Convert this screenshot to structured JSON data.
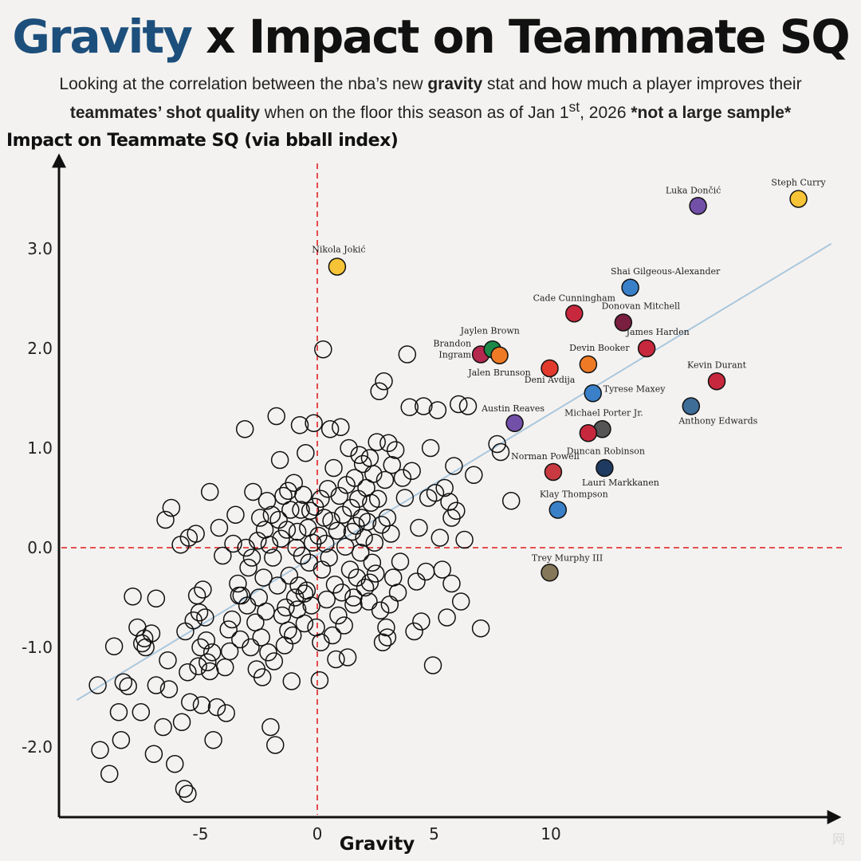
{
  "title": {
    "accent": "Gravity",
    "rest": "x Impact on Teammate SQ"
  },
  "subtitle": {
    "p1": "Looking at the correlation between the nba’s new ",
    "b1": "gravity",
    "p2": " stat and how much a player improves their ",
    "b2": "teammates’ shot quality",
    "p3": " when on the floor this season as of Jan 1",
    "sup": "st",
    "p4": ", 2026 ",
    "b3": "*not a large sample*"
  },
  "watermark": "网",
  "chart_data": {
    "type": "scatter",
    "title": "Gravity x Impact on Teammate SQ",
    "xlabel": "Gravity",
    "ylabel": "Impact on Teammate SQ (via bball index)",
    "xlim": [
      -11,
      22
    ],
    "ylim": [
      -2.75,
      3.9
    ],
    "xticks": [
      -5,
      0,
      5,
      10
    ],
    "yticks": [
      -2.0,
      -1.0,
      0.0,
      1.0,
      2.0,
      3.0
    ],
    "xtick_labels": [
      "-5",
      "0",
      "5",
      "10"
    ],
    "ytick_labels": [
      "-2.0",
      "-1.0",
      "0.0",
      "1.0",
      "2.0",
      "3.0"
    ],
    "reference_lines": {
      "x": 0,
      "y": 0,
      "color": "#e03a3a",
      "style": "dashed"
    },
    "trendline": {
      "from": [
        -10.3,
        -1.53
      ],
      "to": [
        22,
        3.05
      ],
      "color": "#a9c7dd"
    },
    "labeled_points": [
      {
        "name": "Steph Curry",
        "x": 20.6,
        "y": 3.5,
        "color": "#f6c436"
      },
      {
        "name": "Luka Dončić",
        "x": 16.3,
        "y": 3.43,
        "color": "#7250a8"
      },
      {
        "name": "Nikola Jokić",
        "x": 0.85,
        "y": 2.82,
        "color": "#f6c436"
      },
      {
        "name": "Shai Gilgeous-Alexander",
        "x": 13.4,
        "y": 2.61,
        "color": "#3a80c8"
      },
      {
        "name": "Cade Cunningham",
        "x": 11.0,
        "y": 2.35,
        "color": "#c8283e"
      },
      {
        "name": "Donovan Mitchell",
        "x": 13.1,
        "y": 2.26,
        "color": "#7a1f40"
      },
      {
        "name": "James Harden",
        "x": 14.1,
        "y": 2.0,
        "color": "#c8283e"
      },
      {
        "name": "Brandon Ingram",
        "x": 7.0,
        "y": 1.94,
        "color": "#b5294e"
      },
      {
        "name": "Jaylen Brown",
        "x": 7.5,
        "y": 1.99,
        "color": "#1e8a48"
      },
      {
        "name": "Jalen Brunson",
        "x": 7.8,
        "y": 1.93,
        "color": "#ee7a26"
      },
      {
        "name": "Devin Booker",
        "x": 11.6,
        "y": 1.84,
        "color": "#ee7a26"
      },
      {
        "name": "Deni Avdija",
        "x": 9.95,
        "y": 1.8,
        "color": "#e23a2c"
      },
      {
        "name": "Kevin Durant",
        "x": 17.1,
        "y": 1.67,
        "color": "#c8283e"
      },
      {
        "name": "Tyrese Maxey",
        "x": 11.8,
        "y": 1.55,
        "color": "#3a80c8"
      },
      {
        "name": "Anthony Edwards",
        "x": 16.0,
        "y": 1.42,
        "color": "#3e6d98"
      },
      {
        "name": "Austin Reaves",
        "x": 8.45,
        "y": 1.25,
        "color": "#7250a8"
      },
      {
        "name": "Michael Porter Jr.",
        "x": 12.2,
        "y": 1.19,
        "color": "#555555"
      },
      {
        "name": "Duncan Robinson",
        "x": 11.6,
        "y": 1.15,
        "color": "#c8283e"
      },
      {
        "name": "Norman Powell",
        "x": 10.1,
        "y": 0.76,
        "color": "#c83a40"
      },
      {
        "name": "Lauri Markkanen",
        "x": 12.3,
        "y": 0.8,
        "color": "#1f3a60"
      },
      {
        "name": "Klay Thompson",
        "x": 10.3,
        "y": 0.38,
        "color": "#3a80c8"
      },
      {
        "name": "Trey Murphy III",
        "x": 9.95,
        "y": -0.25,
        "color": "#85785a"
      }
    ],
    "unlabeled_points": [
      [
        -9.3,
        -2.03
      ],
      [
        -8.9,
        -2.27
      ],
      [
        -9.4,
        -1.38
      ],
      [
        -8.7,
        -0.99
      ],
      [
        -8.3,
        -1.35
      ],
      [
        -8.1,
        -1.39
      ],
      [
        -8.5,
        -1.65
      ],
      [
        -8.4,
        -1.93
      ],
      [
        -7.9,
        -0.49
      ],
      [
        -7.7,
        -0.8
      ],
      [
        -7.5,
        -0.96
      ],
      [
        -7.4,
        -0.91
      ],
      [
        -7.35,
        -1.0
      ],
      [
        -7.55,
        -1.65
      ],
      [
        -7.1,
        -0.86
      ],
      [
        -6.9,
        -1.38
      ],
      [
        -7.0,
        -2.07
      ],
      [
        -6.9,
        -0.51
      ],
      [
        -6.6,
        -1.8
      ],
      [
        -6.4,
        -1.13
      ],
      [
        -6.5,
        0.28
      ],
      [
        -6.25,
        0.4
      ],
      [
        -6.35,
        -1.42
      ],
      [
        -6.1,
        -2.17
      ],
      [
        -5.8,
        -1.75
      ],
      [
        -5.85,
        0.03
      ],
      [
        -5.65,
        -0.84
      ],
      [
        -5.55,
        -1.25
      ],
      [
        -5.5,
        0.1
      ],
      [
        -5.45,
        -1.55
      ],
      [
        -5.7,
        -2.42
      ],
      [
        -5.55,
        -2.47
      ],
      [
        -5.3,
        -0.73
      ],
      [
        -5.2,
        0.14
      ],
      [
        -5.15,
        -0.48
      ],
      [
        -5.05,
        -0.65
      ],
      [
        -5.0,
        -1.0
      ],
      [
        -4.95,
        -1.58
      ],
      [
        -5.1,
        -1.19
      ],
      [
        -4.9,
        -0.42
      ],
      [
        -4.8,
        -0.7
      ],
      [
        -4.75,
        -0.93
      ],
      [
        -4.7,
        -1.15
      ],
      [
        -4.6,
        -1.24
      ],
      [
        -4.5,
        -1.05
      ],
      [
        -4.6,
        0.56
      ],
      [
        -4.45,
        -1.93
      ],
      [
        -4.3,
        -1.6
      ],
      [
        -4.2,
        0.2
      ],
      [
        -4.05,
        -0.08
      ],
      [
        -3.95,
        -1.2
      ],
      [
        -3.9,
        -1.66
      ],
      [
        -3.8,
        -0.82
      ],
      [
        -3.75,
        -1.04
      ],
      [
        -3.65,
        -0.72
      ],
      [
        -3.6,
        0.04
      ],
      [
        -3.5,
        0.33
      ],
      [
        -3.4,
        -0.36
      ],
      [
        -3.35,
        -0.48
      ],
      [
        -3.3,
        -0.92
      ],
      [
        -3.25,
        -0.48
      ],
      [
        -3.1,
        1.19
      ],
      [
        -3.05,
        0.0
      ],
      [
        -3.0,
        -0.58
      ],
      [
        -2.95,
        -0.2
      ],
      [
        -2.85,
        -1.0
      ],
      [
        -2.8,
        -0.1
      ],
      [
        -2.75,
        0.56
      ],
      [
        -2.65,
        -0.75
      ],
      [
        -2.6,
        -1.22
      ],
      [
        -2.55,
        0.07
      ],
      [
        -2.5,
        -0.5
      ],
      [
        -2.45,
        0.3
      ],
      [
        -2.4,
        -0.9
      ],
      [
        -2.35,
        -1.3
      ],
      [
        -2.3,
        -0.3
      ],
      [
        -2.25,
        0.18
      ],
      [
        -2.2,
        -0.64
      ],
      [
        -2.15,
        0.47
      ],
      [
        -2.1,
        -1.05
      ],
      [
        -2.05,
        0.03
      ],
      [
        -2.0,
        -1.8
      ],
      [
        -1.95,
        0.33
      ],
      [
        -1.9,
        -0.1
      ],
      [
        -1.85,
        -1.14
      ],
      [
        -1.8,
        -1.98
      ],
      [
        -1.75,
        1.32
      ],
      [
        -1.7,
        -0.38
      ],
      [
        -1.65,
        0.28
      ],
      [
        -1.6,
        0.88
      ],
      [
        -1.55,
        0.09
      ],
      [
        -1.5,
        -0.68
      ],
      [
        -1.45,
        0.52
      ],
      [
        -1.4,
        -0.98
      ],
      [
        -1.35,
        -0.6
      ],
      [
        -1.3,
        0.18
      ],
      [
        -1.25,
        0.57
      ],
      [
        -1.2,
        -0.28
      ],
      [
        -1.15,
        0.38
      ],
      [
        -1.1,
        -1.34
      ],
      [
        -1.05,
        -0.88
      ],
      [
        -1.0,
        0.65
      ],
      [
        -0.95,
        -0.5
      ],
      [
        -0.9,
        0.0
      ],
      [
        -0.85,
        0.16
      ],
      [
        -0.8,
        -0.38
      ],
      [
        -0.75,
        1.23
      ],
      [
        -0.7,
        0.38
      ],
      [
        -0.65,
        -0.08
      ],
      [
        -0.6,
        0.53
      ],
      [
        -0.55,
        -0.76
      ],
      [
        -0.5,
        0.95
      ],
      [
        -0.45,
        -0.43
      ],
      [
        -0.4,
        0.2
      ],
      [
        -0.35,
        -0.15
      ],
      [
        -0.3,
        0.37
      ],
      [
        -0.25,
        -0.58
      ],
      [
        -0.2,
        0.05
      ],
      [
        -0.15,
        1.25
      ],
      [
        -0.1,
        0.41
      ],
      [
        -0.05,
        -0.8
      ],
      [
        0.05,
        0.12
      ],
      [
        0.1,
        -1.33
      ],
      [
        0.15,
        0.49
      ],
      [
        0.2,
        -0.22
      ],
      [
        0.25,
        1.99
      ],
      [
        0.3,
        0.3
      ],
      [
        0.35,
        0.04
      ],
      [
        0.4,
        -0.52
      ],
      [
        0.45,
        0.59
      ],
      [
        0.5,
        -0.1
      ],
      [
        0.55,
        1.19
      ],
      [
        0.6,
        0.27
      ],
      [
        0.65,
        -0.88
      ],
      [
        0.7,
        0.8
      ],
      [
        0.75,
        -0.37
      ],
      [
        0.8,
        -1.12
      ],
      [
        0.85,
        0.17
      ],
      [
        0.9,
        -0.68
      ],
      [
        0.95,
        0.52
      ],
      [
        1.0,
        1.21
      ],
      [
        1.05,
        -0.45
      ],
      [
        1.1,
        0.33
      ],
      [
        1.15,
        -0.78
      ],
      [
        1.2,
        0.01
      ],
      [
        1.25,
        0.63
      ],
      [
        1.3,
        -1.1
      ],
      [
        1.35,
        1.0
      ],
      [
        1.4,
        -0.22
      ],
      [
        1.45,
        0.4
      ],
      [
        1.5,
        0.16
      ],
      [
        1.55,
        -0.57
      ],
      [
        1.6,
        0.7
      ],
      [
        1.65,
        0.22
      ],
      [
        1.7,
        -0.3
      ],
      [
        1.75,
        0.49
      ],
      [
        1.8,
        0.93
      ],
      [
        1.85,
        -0.05
      ],
      [
        1.9,
        0.3
      ],
      [
        1.95,
        0.84
      ],
      [
        2.0,
        0.1
      ],
      [
        2.05,
        -0.4
      ],
      [
        2.1,
        0.6
      ],
      [
        2.15,
        0.26
      ],
      [
        2.2,
        -0.54
      ],
      [
        2.25,
        0.9
      ],
      [
        2.3,
        0.45
      ],
      [
        2.35,
        -0.15
      ],
      [
        2.4,
        0.74
      ],
      [
        2.45,
        0.05
      ],
      [
        2.5,
        -0.26
      ],
      [
        2.55,
        1.06
      ],
      [
        2.6,
        0.49
      ],
      [
        2.65,
        1.57
      ],
      [
        2.7,
        -0.63
      ],
      [
        2.75,
        0.23
      ],
      [
        2.8,
        -0.95
      ],
      [
        2.85,
        1.67
      ],
      [
        2.9,
        0.68
      ],
      [
        2.95,
        -0.8
      ],
      [
        3.0,
        0.3
      ],
      [
        3.05,
        1.05
      ],
      [
        3.1,
        -0.57
      ],
      [
        3.15,
        0.14
      ],
      [
        3.2,
        0.83
      ],
      [
        3.25,
        -0.3
      ],
      [
        3.35,
        0.98
      ],
      [
        3.45,
        -0.45
      ],
      [
        3.55,
        -0.14
      ],
      [
        3.65,
        0.7
      ],
      [
        3.75,
        0.5
      ],
      [
        3.85,
        1.94
      ],
      [
        3.95,
        1.41
      ],
      [
        4.05,
        0.77
      ],
      [
        4.15,
        -0.84
      ],
      [
        4.25,
        -0.34
      ],
      [
        4.35,
        0.2
      ],
      [
        4.45,
        -0.74
      ],
      [
        4.55,
        1.42
      ],
      [
        4.65,
        -0.24
      ],
      [
        4.75,
        0.5
      ],
      [
        4.85,
        1.0
      ],
      [
        4.95,
        -1.18
      ],
      [
        5.05,
        0.55
      ],
      [
        5.15,
        1.38
      ],
      [
        5.25,
        0.1
      ],
      [
        5.35,
        -0.22
      ],
      [
        5.45,
        0.6
      ],
      [
        5.55,
        -0.7
      ],
      [
        5.65,
        0.46
      ],
      [
        5.75,
        -0.36
      ],
      [
        5.85,
        0.82
      ],
      [
        5.95,
        0.37
      ],
      [
        6.05,
        1.44
      ],
      [
        6.15,
        -0.54
      ],
      [
        6.3,
        0.08
      ],
      [
        6.45,
        1.42
      ],
      [
        7.0,
        -0.81
      ],
      [
        7.7,
        1.04
      ],
      [
        7.85,
        0.96
      ],
      [
        8.3,
        0.47
      ],
      [
        6.7,
        0.73
      ],
      [
        5.75,
        0.3
      ],
      [
        3.0,
        -0.9
      ],
      [
        -0.85,
        -0.62
      ],
      [
        -0.55,
        -0.46
      ],
      [
        1.55,
        -0.5
      ],
      [
        2.25,
        -0.35
      ],
      [
        0.15,
        -0.95
      ],
      [
        -1.25,
        -0.83
      ]
    ]
  }
}
